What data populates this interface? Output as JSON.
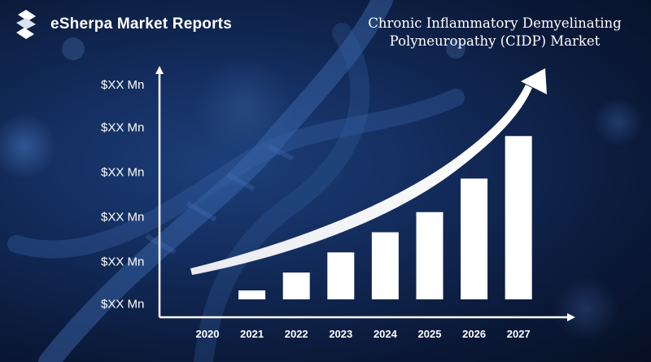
{
  "brand": {
    "name": "eSherpa Market Reports",
    "logo_icon": "esherpa-s-logo-icon"
  },
  "title": {
    "line1": "Chronic Inflammatory Demyelinating",
    "line2": "Polyneuropathy (CIDP) Market"
  },
  "colors": {
    "bar": "#ffffff",
    "axis": "#ffffff",
    "text": "#ffffff",
    "background": "#0b1a3a"
  },
  "chart_data": {
    "type": "bar",
    "title": "Chronic Inflammatory Demyelinating Polyneuropathy (CIDP) Market",
    "categories": [
      "2020",
      "2021",
      "2022",
      "2023",
      "2024",
      "2025",
      "2026",
      "2027"
    ],
    "values": [
      3.5,
      6,
      10,
      14.5,
      19,
      23.5,
      31,
      40.5
    ],
    "ylim": [
      0,
      52
    ],
    "yticks": [
      {
        "value": 3,
        "label": "$XX Mn"
      },
      {
        "value": 12.5,
        "label": "$XX Mn"
      },
      {
        "value": 22.5,
        "label": "$XX Mn"
      },
      {
        "value": 32.5,
        "label": "$XX Mn"
      },
      {
        "value": 42.5,
        "label": "$XX Mn"
      },
      {
        "value": 52,
        "label": "$XX Mn"
      }
    ],
    "trend_arrow": true,
    "grid": false,
    "legend": "none"
  }
}
